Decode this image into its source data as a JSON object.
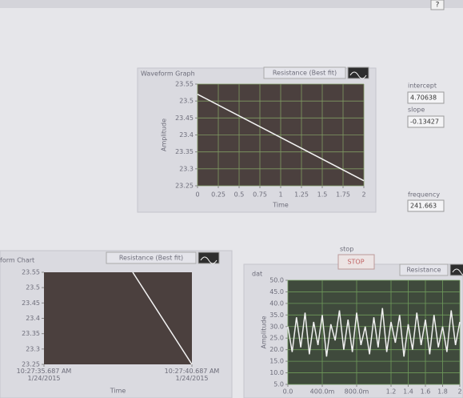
{
  "toolbar": {
    "help": "?"
  },
  "chart_data": [
    {
      "type": "line",
      "title": "Waveform Graph",
      "xlabel": "Time",
      "ylabel": "Amplitude",
      "x": [
        0,
        2
      ],
      "series": [
        {
          "name": "Resistance (Best fit)",
          "color": "#f4f4f4",
          "values": [
            23.52,
            23.265
          ]
        }
      ],
      "xlim": [
        0,
        2
      ],
      "xticks": [
        0,
        0.25,
        0.5,
        0.75,
        1,
        1.25,
        1.5,
        1.75,
        2
      ],
      "ylim": [
        23.25,
        23.55
      ],
      "yticks": [
        23.25,
        23.3,
        23.35,
        23.4,
        23.45,
        23.5,
        23.55
      ],
      "grid": true,
      "background": "#4b403e",
      "grid_color": "#7f9a63"
    },
    {
      "type": "line",
      "title": "form Chart",
      "xlabel": "Time",
      "x": [
        3,
        5
      ],
      "series": [
        {
          "name": "Resistance (Best fit)",
          "color": "#f4f4f4",
          "values": [
            23.55,
            23.25
          ]
        }
      ],
      "xlim": [
        0,
        5
      ],
      "xticks": [
        {
          "value": 0,
          "label": "10:27:35.687 AM 1/24/2015"
        },
        {
          "value": 5,
          "label": "10:27:40.687 AM 1/24/2015"
        }
      ],
      "ylim": [
        23.25,
        23.55
      ],
      "yticks": [
        23.25,
        23.3,
        23.35,
        23.4,
        23.45,
        23.5,
        23.55
      ],
      "grid": false,
      "background": "#4b403e"
    },
    {
      "type": "line",
      "title": "dat",
      "ylabel": "Amplitude",
      "x": [
        0,
        0.05,
        0.1,
        0.15,
        0.2,
        0.25,
        0.3,
        0.35,
        0.4,
        0.45,
        0.5,
        0.55,
        0.6,
        0.65,
        0.7,
        0.75,
        0.8,
        0.85,
        0.9,
        0.95,
        1,
        1.05,
        1.1,
        1.15,
        1.2,
        1.25,
        1.3,
        1.35,
        1.4,
        1.45,
        1.5,
        1.55,
        1.6,
        1.65,
        1.7,
        1.75,
        1.8,
        1.85,
        1.9,
        1.95,
        2
      ],
      "series": [
        {
          "name": "Resistance",
          "color": "#f0f0f0",
          "values": [
            30,
            19,
            34,
            21,
            36,
            18,
            32,
            22,
            35,
            17,
            31,
            24,
            37,
            20,
            33,
            19,
            36,
            22,
            30,
            18,
            34,
            21,
            38,
            19,
            32,
            23,
            35,
            17,
            31,
            20,
            36,
            22,
            33,
            18,
            35,
            21,
            30,
            19,
            37,
            22,
            32
          ]
        }
      ],
      "xlim": [
        0,
        2
      ],
      "xticks": [
        {
          "value": 0,
          "label": "0.0"
        },
        {
          "value": 0.4,
          "label": "400.0m"
        },
        {
          "value": 0.8,
          "label": "800.0m"
        },
        1.2,
        1.4,
        1.6,
        1.8,
        2
      ],
      "ylim": [
        5,
        50
      ],
      "yticks": [
        {
          "value": 5,
          "label": "5.0"
        },
        {
          "value": 10,
          "label": "10.0"
        },
        {
          "value": 15,
          "label": "15.0"
        },
        {
          "value": 20,
          "label": "20.0"
        },
        {
          "value": 25,
          "label": "25.0"
        },
        {
          "value": 30,
          "label": "30.0"
        },
        {
          "value": 35,
          "label": "35.0"
        },
        {
          "value": 40,
          "label": "40.0"
        },
        {
          "value": 45,
          "label": "45.0"
        },
        {
          "value": 50,
          "label": "50.0"
        }
      ],
      "grid": true,
      "background": "#3f4a3c",
      "grid_color": "#6f9a5a"
    }
  ],
  "controls": {
    "intercept": {
      "label": "intercept",
      "value": "4.70638"
    },
    "slope": {
      "label": "slope",
      "value": "-0.13427"
    },
    "frequency": {
      "label": "frequency",
      "value": "241.663"
    },
    "stop": {
      "label": "stop",
      "button": "STOP"
    }
  }
}
